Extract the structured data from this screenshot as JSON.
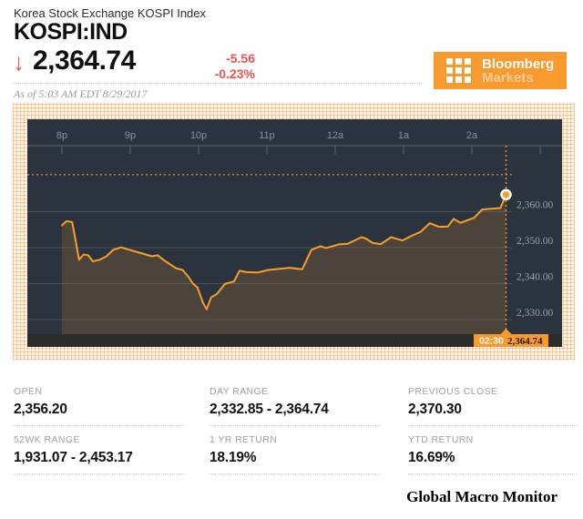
{
  "header": {
    "subtitle": "Korea Stock Exchange KOSPI Index",
    "ticker": "KOSPI:IND",
    "price": "2,364.74",
    "change": "-5.56",
    "change_pct": "-0.23%",
    "direction_icon": "↓",
    "as_of": "As of 5:03 AM EDT 8/29/2017",
    "red": "#f0524b"
  },
  "logo": {
    "line1": "Bloomberg",
    "line2": "Markets",
    "bg": "#f89a2e"
  },
  "chart_data": {
    "type": "area",
    "title": "KOSPI:IND intraday price",
    "x_ticks": [
      "8p",
      "9p",
      "10p",
      "11p",
      "12a",
      "1a",
      "2a"
    ],
    "y_axis": [
      {
        "label": "2,360.00",
        "value": 2360
      },
      {
        "label": "2,350.00",
        "value": 2350
      },
      {
        "label": "2,340.00",
        "value": 2340
      },
      {
        "label": "2,330.00",
        "value": 2330
      }
    ],
    "ylim": [
      2326,
      2372
    ],
    "previous_close": 2370.3,
    "session_minutes": 390,
    "last_marker": {
      "time": "02:30",
      "price_label": "2,364.74",
      "value": 2364.74
    },
    "grid": "on",
    "line_color": "#f99e26",
    "marker_color": "#f89a2e",
    "dotted_color": "#cf8a2b",
    "panel_bg": "#2b333e",
    "strip_bg": "#2c2c2c",
    "points": [
      [
        0,
        2356.2
      ],
      [
        4,
        2357.4
      ],
      [
        9,
        2357.1
      ],
      [
        12,
        2352.0
      ],
      [
        15,
        2346.6
      ],
      [
        19,
        2348.1
      ],
      [
        23,
        2347.9
      ],
      [
        27,
        2346.2
      ],
      [
        33,
        2346.6
      ],
      [
        39,
        2347.6
      ],
      [
        45,
        2349.4
      ],
      [
        52,
        2350.1
      ],
      [
        57,
        2349.6
      ],
      [
        68,
        2348.6
      ],
      [
        79,
        2347.6
      ],
      [
        84,
        2347.9
      ],
      [
        90,
        2346.4
      ],
      [
        100,
        2344.3
      ],
      [
        106,
        2343.8
      ],
      [
        111,
        2341.9
      ],
      [
        115,
        2340.0
      ],
      [
        119,
        2338.9
      ],
      [
        124,
        2334.6
      ],
      [
        127,
        2332.85
      ],
      [
        131,
        2336.2
      ],
      [
        136,
        2337.1
      ],
      [
        143,
        2339.9
      ],
      [
        151,
        2340.6
      ],
      [
        156,
        2343.6
      ],
      [
        162,
        2343.2
      ],
      [
        172,
        2343.1
      ],
      [
        181,
        2343.8
      ],
      [
        191,
        2344.1
      ],
      [
        200,
        2344.4
      ],
      [
        211,
        2344.0
      ],
      [
        219,
        2349.4
      ],
      [
        227,
        2350.4
      ],
      [
        232,
        2349.9
      ],
      [
        243,
        2350.9
      ],
      [
        251,
        2351.1
      ],
      [
        263,
        2352.9
      ],
      [
        267,
        2352.5
      ],
      [
        273,
        2351.3
      ],
      [
        280,
        2351.0
      ],
      [
        289,
        2352.9
      ],
      [
        299,
        2352.0
      ],
      [
        307,
        2353.3
      ],
      [
        315,
        2354.4
      ],
      [
        323,
        2356.8
      ],
      [
        331,
        2355.8
      ],
      [
        339,
        2355.9
      ],
      [
        344,
        2358.0
      ],
      [
        350,
        2356.9
      ],
      [
        356,
        2357.6
      ],
      [
        362,
        2358.3
      ],
      [
        369,
        2360.6
      ],
      [
        377,
        2360.8
      ],
      [
        385,
        2361.0
      ],
      [
        390,
        2364.74
      ]
    ]
  },
  "stats": {
    "cells": [
      {
        "label": "OPEN",
        "value": "2,356.20"
      },
      {
        "label": "DAY RANGE",
        "value": "2,332.85 - 2,364.74"
      },
      {
        "label": "PREVIOUS CLOSE",
        "value": "2,370.30"
      },
      {
        "label": "52WK RANGE",
        "value": "1,931.07 - 2,453.17"
      },
      {
        "label": "1 YR RETURN",
        "value": "18.19%"
      },
      {
        "label": "YTD RETURN",
        "value": "16.69%"
      }
    ]
  },
  "footer": {
    "credit": "Global Macro Monitor"
  }
}
